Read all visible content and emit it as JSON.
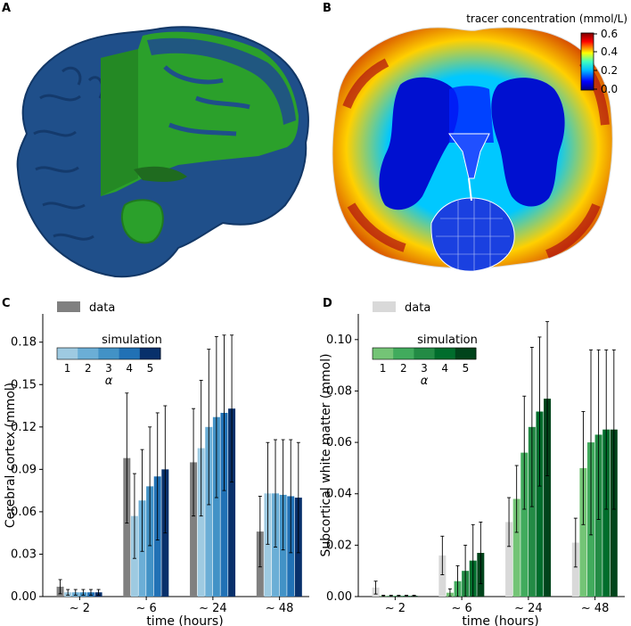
{
  "panels": {
    "a": "A",
    "b": "B",
    "c": "C",
    "d": "D"
  },
  "colorbar": {
    "title": "tracer concentration (mmol/L)",
    "ticks": [
      "0.6",
      "0.4",
      "0.2",
      "0.0"
    ]
  },
  "chart_data": [
    {
      "type": "bar",
      "panel": "C",
      "xlabel": "time (hours)",
      "ylabel": "Cerebral cortex (mmol)",
      "ylim": [
        0,
        0.2
      ],
      "yticks": [
        "0.00",
        "0.03",
        "0.06",
        "0.09",
        "0.12",
        "0.15",
        "0.18"
      ],
      "categories": [
        "~ 2",
        "~ 6",
        "~ 24",
        "~ 48"
      ],
      "legend": {
        "data_label": "data",
        "sim_title": "simulation",
        "alpha_ticks": [
          "1",
          "2",
          "3",
          "4",
          "5"
        ],
        "alpha_symbol": "α",
        "position": "top-left"
      },
      "data_series": {
        "name": "data",
        "color": "#808080",
        "values": [
          0.007,
          0.098,
          0.095,
          0.046
        ],
        "errors": [
          0.005,
          0.046,
          0.038,
          0.025
        ]
      },
      "sim_colors": [
        "#9ecae1",
        "#6baed6",
        "#4292c6",
        "#2171b5",
        "#08306b"
      ],
      "sim_series": [
        {
          "name": "alpha 1",
          "values": [
            0.003,
            0.057,
            0.105,
            0.073
          ],
          "errors": [
            0.002,
            0.03,
            0.048,
            0.036
          ]
        },
        {
          "name": "alpha 2",
          "values": [
            0.003,
            0.068,
            0.12,
            0.073
          ],
          "errors": [
            0.002,
            0.036,
            0.055,
            0.038
          ]
        },
        {
          "name": "alpha 3",
          "values": [
            0.003,
            0.078,
            0.127,
            0.072
          ],
          "errors": [
            0.002,
            0.042,
            0.057,
            0.039
          ]
        },
        {
          "name": "alpha 4",
          "values": [
            0.003,
            0.085,
            0.13,
            0.071
          ],
          "errors": [
            0.002,
            0.045,
            0.055,
            0.04
          ]
        },
        {
          "name": "alpha 5",
          "values": [
            0.003,
            0.09,
            0.133,
            0.07
          ],
          "errors": [
            0.002,
            0.045,
            0.052,
            0.039
          ]
        }
      ]
    },
    {
      "type": "bar",
      "panel": "D",
      "xlabel": "time (hours)",
      "ylabel": "Subcortical white matter (mmol)",
      "ylim": [
        0,
        0.11
      ],
      "yticks": [
        "0.00",
        "0.02",
        "0.04",
        "0.06",
        "0.08",
        "0.10"
      ],
      "categories": [
        "~ 2",
        "~ 6",
        "~ 24",
        "~ 48"
      ],
      "legend": {
        "data_label": "data",
        "sim_title": "simulation",
        "alpha_ticks": [
          "1",
          "2",
          "3",
          "4",
          "5"
        ],
        "alpha_symbol": "α",
        "position": "top-left"
      },
      "data_series": {
        "name": "data",
        "color": "#d9d9d9",
        "values": [
          0.0035,
          0.016,
          0.029,
          0.021
        ],
        "errors": [
          0.0025,
          0.0075,
          0.0095,
          0.0095
        ]
      },
      "sim_colors": [
        "#74c476",
        "#41ab5d",
        "#238b45",
        "#006d2c",
        "#00441b"
      ],
      "sim_series": [
        {
          "name": "alpha 1",
          "values": [
            0.0003,
            0.0015,
            0.038,
            0.05
          ],
          "errors": [
            0.0002,
            0.0015,
            0.013,
            0.022
          ]
        },
        {
          "name": "alpha 2",
          "values": [
            0.0003,
            0.006,
            0.056,
            0.06
          ],
          "errors": [
            0.0002,
            0.006,
            0.022,
            0.036
          ]
        },
        {
          "name": "alpha 3",
          "values": [
            0.0003,
            0.01,
            0.066,
            0.063
          ],
          "errors": [
            0.0002,
            0.01,
            0.031,
            0.033
          ]
        },
        {
          "name": "alpha 4",
          "values": [
            0.0003,
            0.014,
            0.072,
            0.065
          ],
          "errors": [
            0.0002,
            0.014,
            0.029,
            0.031
          ]
        },
        {
          "name": "alpha 5",
          "values": [
            0.0003,
            0.017,
            0.077,
            0.065
          ],
          "errors": [
            0.0002,
            0.012,
            0.03,
            0.031
          ]
        }
      ]
    }
  ]
}
